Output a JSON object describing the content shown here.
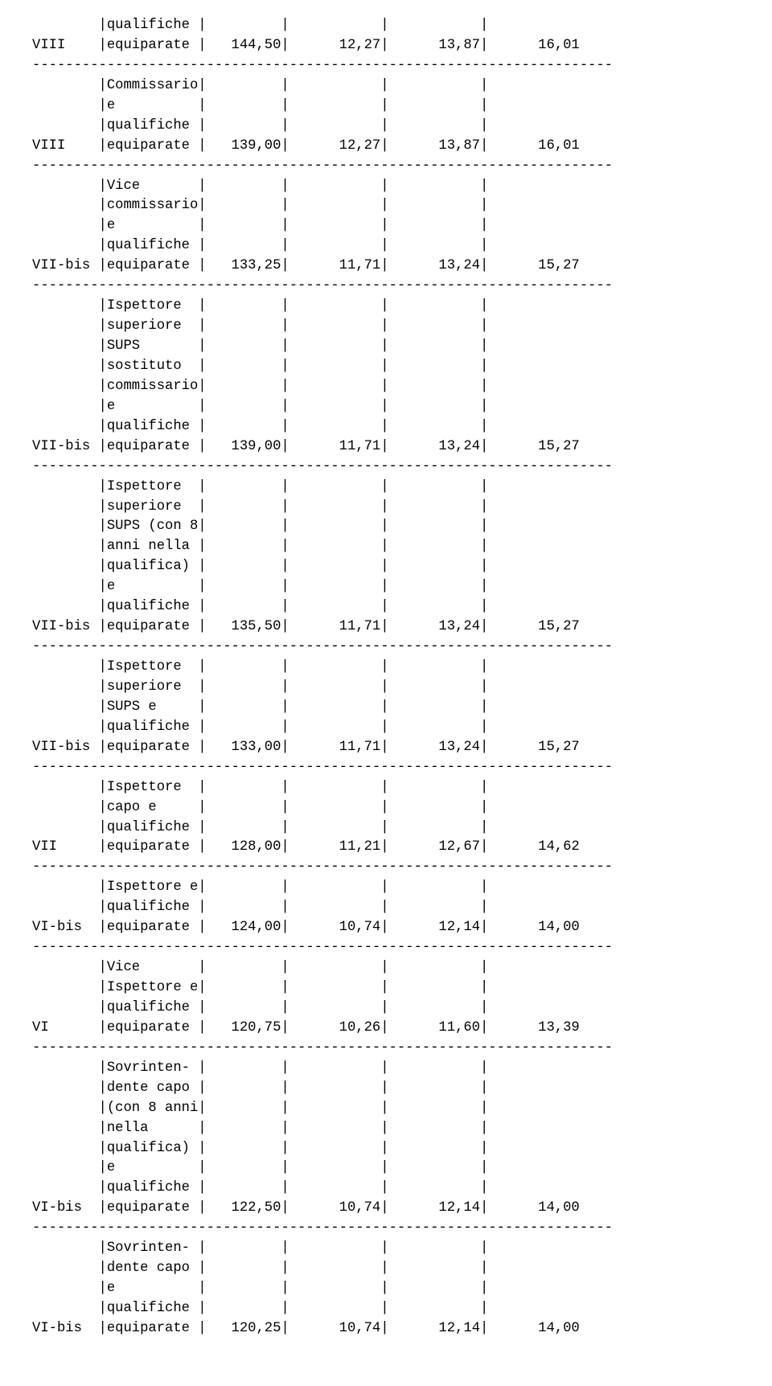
{
  "font": {
    "family": "Courier New",
    "size_pt": 13,
    "color": "#000000",
    "background": "#ffffff"
  },
  "layout": {
    "col_widths_chars": {
      "level": 8,
      "desc": 11,
      "v1": 9,
      "v2": 11,
      "v3": 11,
      "v4": 11
    },
    "separator_char": "-",
    "separator_length": 70,
    "pipe_char": "|"
  },
  "rows": [
    {
      "level": "",
      "desc_lines": [
        "qualifiche"
      ],
      "last_line": "equiparate",
      "level_last": "VIII",
      "values": [
        "144,50",
        "12,27",
        "13,87",
        "16,01"
      ]
    },
    {
      "level": "",
      "desc_lines": [
        "Commissario",
        "e",
        "qualifiche"
      ],
      "last_line": "equiparate",
      "level_last": "VIII",
      "values": [
        "139,00",
        "12,27",
        "13,87",
        "16,01"
      ]
    },
    {
      "level": "",
      "desc_lines": [
        "Vice",
        "commissario",
        "e",
        "qualifiche"
      ],
      "last_line": "equiparate",
      "level_last": "VII-bis",
      "values": [
        "133,25",
        "11,71",
        "13,24",
        "15,27"
      ]
    },
    {
      "level": "",
      "desc_lines": [
        "Ispettore",
        "superiore",
        "SUPS",
        "sostituto",
        "commissario",
        "e",
        "qualifiche"
      ],
      "last_line": "equiparate",
      "level_last": "VII-bis",
      "values": [
        "139,00",
        "11,71",
        "13,24",
        "15,27"
      ]
    },
    {
      "level": "",
      "desc_lines": [
        "Ispettore",
        "superiore",
        "SUPS (con 8",
        "anni nella",
        "qualifica)",
        "e",
        "qualifiche"
      ],
      "last_line": "equiparate",
      "level_last": "VII-bis",
      "values": [
        "135,50",
        "11,71",
        "13,24",
        "15,27"
      ]
    },
    {
      "level": "",
      "desc_lines": [
        "Ispettore",
        "superiore",
        "SUPS e",
        "qualifiche"
      ],
      "last_line": "equiparate",
      "level_last": "VII-bis",
      "values": [
        "133,00",
        "11,71",
        "13,24",
        "15,27"
      ]
    },
    {
      "level": "",
      "desc_lines": [
        "Ispettore",
        "capo e",
        "qualifiche"
      ],
      "last_line": "equiparate",
      "level_last": "VII",
      "values": [
        "128,00",
        "11,21",
        "12,67",
        "14,62"
      ]
    },
    {
      "level": "",
      "desc_lines": [
        "Ispettore e",
        "qualifiche"
      ],
      "last_line": "equiparate",
      "level_last": "VI-bis",
      "values": [
        "124,00",
        "10,74",
        "12,14",
        "14,00"
      ]
    },
    {
      "level": "",
      "desc_lines": [
        "Vice",
        "Ispettore e",
        "qualifiche"
      ],
      "last_line": "equiparate",
      "level_last": "VI",
      "values": [
        "120,75",
        "10,26",
        "11,60",
        "13,39"
      ]
    },
    {
      "level": "",
      "desc_lines": [
        "Sovrinten-",
        "dente capo",
        "(con 8 anni",
        "nella",
        "qualifica)",
        "e",
        "qualifiche"
      ],
      "last_line": "equiparate",
      "level_last": "VI-bis",
      "values": [
        "122,50",
        "10,74",
        "12,14",
        "14,00"
      ]
    },
    {
      "level": "",
      "desc_lines": [
        "Sovrinten-",
        "dente capo",
        "e",
        "qualifiche"
      ],
      "last_line": "equiparate",
      "level_last": "VI-bis",
      "values": [
        "120,25",
        "10,74",
        "12,14",
        "14,00"
      ],
      "no_separator": true
    }
  ]
}
